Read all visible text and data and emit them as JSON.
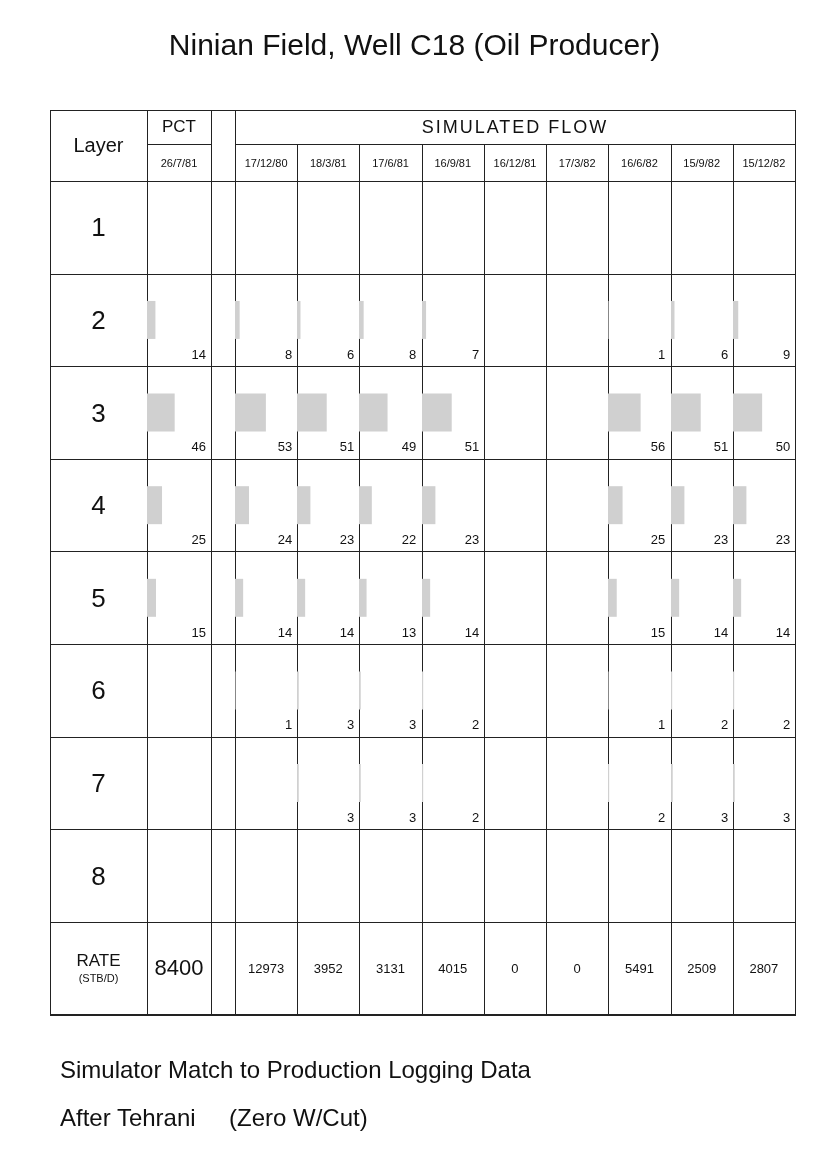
{
  "chart_data": [
    {
      "type": "bar",
      "orientation": "horizontal",
      "title": "Ninian Field, Well C18 (Oil Producer)",
      "ylabel": "Layer",
      "subtitle": "26/7/81",
      "categories": [
        "1",
        "2",
        "3",
        "4",
        "5",
        "6",
        "7",
        "8"
      ],
      "values": [
        null,
        14,
        46,
        25,
        15,
        null,
        null,
        null
      ],
      "color": "#d0d0d0",
      "data_labels": true,
      "tick_labels": "y",
      "annotations": [
        "8400",
        "RATE",
        "(STB/D)",
        "PCT",
        "Simulator Match to Production Logging Data",
        "After Tehrani     (Zero W/Cut)"
      ]
    },
    {
      "type": "bar",
      "orientation": "horizontal",
      "subtitle": "17/12/80",
      "categories": [
        "1",
        "2",
        "3",
        "4",
        "5",
        "6",
        "7",
        "8"
      ],
      "values": [
        null,
        8,
        53,
        24,
        14,
        1,
        null,
        null
      ],
      "color": "#d0d0d0",
      "data_labels": true,
      "tick_labels": false,
      "annotations": [
        "12973",
        "SIMULATED FLOW"
      ]
    },
    {
      "type": "bar",
      "orientation": "horizontal",
      "subtitle": "18/3/81",
      "categories": [
        "1",
        "2",
        "3",
        "4",
        "5",
        "6",
        "7",
        "8"
      ],
      "values": [
        null,
        6,
        51,
        23,
        14,
        3,
        3,
        null
      ],
      "color": "#d0d0d0",
      "data_labels": true,
      "tick_labels": false,
      "annotations": [
        "3952"
      ]
    },
    {
      "type": "bar",
      "orientation": "horizontal",
      "subtitle": "17/6/81",
      "categories": [
        "1",
        "2",
        "3",
        "4",
        "5",
        "6",
        "7",
        "8"
      ],
      "values": [
        null,
        8,
        49,
        22,
        13,
        3,
        3,
        null
      ],
      "color": "#d0d0d0",
      "data_labels": true,
      "tick_labels": false,
      "annotations": [
        "3131"
      ]
    },
    {
      "type": "bar",
      "orientation": "horizontal",
      "subtitle": "16/9/81",
      "categories": [
        "1",
        "2",
        "3",
        "4",
        "5",
        "6",
        "7",
        "8"
      ],
      "values": [
        null,
        7,
        51,
        23,
        14,
        2,
        2,
        null
      ],
      "color": "#d0d0d0",
      "data_labels": true,
      "tick_labels": false,
      "annotations": [
        "4015"
      ]
    },
    {
      "type": "other",
      "subtitle": "16/12/81",
      "annotations": [
        "0"
      ]
    },
    {
      "type": "other",
      "subtitle": "17/3/82",
      "annotations": [
        "0"
      ]
    },
    {
      "type": "bar",
      "orientation": "horizontal",
      "subtitle": "16/6/82",
      "categories": [
        "1",
        "2",
        "3",
        "4",
        "5",
        "6",
        "7",
        "8"
      ],
      "values": [
        null,
        1,
        56,
        25,
        15,
        1,
        2,
        null
      ],
      "color": "#d0d0d0",
      "data_labels": true,
      "tick_labels": false,
      "annotations": [
        "5491"
      ]
    },
    {
      "type": "bar",
      "orientation": "horizontal",
      "subtitle": "15/9/82",
      "categories": [
        "1",
        "2",
        "3",
        "4",
        "5",
        "6",
        "7",
        "8"
      ],
      "values": [
        null,
        6,
        51,
        23,
        14,
        2,
        3,
        null
      ],
      "color": "#d0d0d0",
      "data_labels": true,
      "tick_labels": false,
      "annotations": [
        "2509"
      ]
    },
    {
      "type": "bar",
      "orientation": "horizontal",
      "subtitle": "15/12/82",
      "categories": [
        "1",
        "2",
        "3",
        "4",
        "5",
        "6",
        "7",
        "8"
      ],
      "values": [
        null,
        9,
        50,
        23,
        14,
        2,
        3,
        null
      ],
      "color": "#d0d0d0",
      "data_labels": true,
      "tick_labels": false,
      "annotations": [
        "2807"
      ]
    }
  ]
}
